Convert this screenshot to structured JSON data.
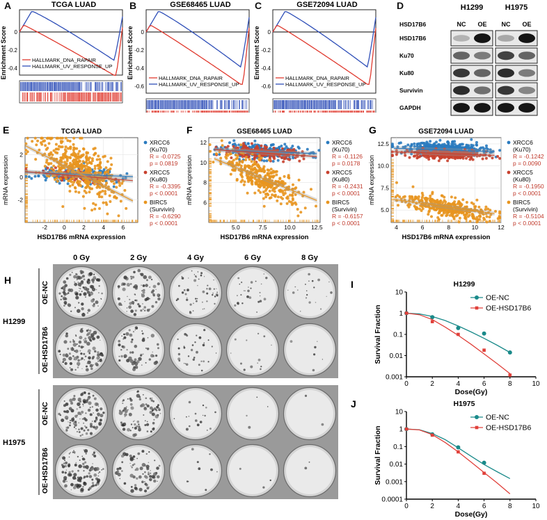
{
  "panels": {
    "A": {
      "letter": "A",
      "title": "TCGA LUAD",
      "ylabel": "Enrichment Score",
      "yticks": [
        "0",
        "-0.2",
        "-0.4"
      ],
      "legend": [
        "HALLMARK_DNA_RAPAIR",
        "HALLMARK_UV_RESPONSE_UP"
      ]
    },
    "B": {
      "letter": "B",
      "title": "GSE68465 LUAD",
      "ylabel": "Enrichment Score",
      "yticks": [
        "0",
        "-0.2",
        "-0.4",
        "-0.6"
      ],
      "legend": [
        "HALLMARK_DNA_RAPAIR",
        "HALLMARK_UV_RESPONSE_UP"
      ]
    },
    "C": {
      "letter": "C",
      "title": "GSE72094 LUAD",
      "ylabel": "Enrichment Score",
      "yticks": [
        "0",
        "-0.2",
        "-0.4",
        "-0.6"
      ],
      "legend": [
        "HALLMARK_DNA_RAPAIR",
        "HALLMARK_UV_RESPONSE_UP"
      ]
    },
    "D": {
      "letter": "D",
      "cell_lines": [
        "H1299",
        "H1975"
      ],
      "row_header": "HSD17B6",
      "cols": [
        "NC",
        "OE",
        "NC",
        "OE"
      ],
      "proteins": [
        "HSD17B6",
        "Ku70",
        "Ku80",
        "Survivin",
        "GAPDH"
      ]
    },
    "E": {
      "letter": "E",
      "title": "TCGA LUAD",
      "xlabel": "HSD17B6 mRNA expression",
      "ylabel": "mRNA expression",
      "xticks": [
        "-2",
        "0",
        "2",
        "4",
        "6"
      ],
      "yticks": [
        "2",
        "0",
        "-2"
      ],
      "stats": [
        {
          "gene": "XRCC6",
          "protein": "(Ku70)",
          "r": "R = -0.0725",
          "p": "p = 0.0819"
        },
        {
          "gene": "XRCC5",
          "protein": "(Ku80)",
          "r": "R = -0.3395",
          "p": "p < 0.0001"
        },
        {
          "gene": "BIRC5",
          "protein": "(Survivin)",
          "r": "R = -0.6290",
          "p": "p < 0.0001"
        }
      ]
    },
    "F": {
      "letter": "F",
      "title": "GSE68465 LUAD",
      "xlabel": "HSD17B6 mRNA expression",
      "ylabel": "mRNA expression",
      "xticks": [
        "5.0",
        "7.5",
        "10.0",
        "12.5"
      ],
      "yticks": [
        "12",
        "10",
        "8",
        "6"
      ],
      "stats": [
        {
          "gene": "XRCC6",
          "protein": "(Ku70)",
          "r": "R = -0.1126",
          "p": "p = 0.0178"
        },
        {
          "gene": "XRCC5",
          "protein": "(Ku80)",
          "r": "R = -0.2431",
          "p": "p < 0.0001"
        },
        {
          "gene": "BIRC5",
          "protein": "(Survivin)",
          "r": "R = -0.6157",
          "p": "p < 0.0001"
        }
      ]
    },
    "G": {
      "letter": "G",
      "title": "GSE72094 LUAD",
      "xlabel": "HSD17B6 mRNA expression",
      "ylabel": "mRNA expression",
      "xticks": [
        "4",
        "6",
        "8",
        "10",
        "12"
      ],
      "yticks": [
        "12.5",
        "10.0",
        "7.5",
        "5.0"
      ],
      "stats": [
        {
          "gene": "XRCC6",
          "protein": "(Ku70)",
          "r": "R = -0.1242",
          "p": "p = 0.0090"
        },
        {
          "gene": "XRCC5",
          "protein": "(Ku80)",
          "r": "R = -0.1950",
          "p": "p < 0.0001"
        },
        {
          "gene": "BIRC5",
          "protein": "(Survivin)",
          "r": "R = -0.5104",
          "p": "p < 0.0001"
        }
      ]
    },
    "H": {
      "letter": "H",
      "doses": [
        "0 Gy",
        "2 Gy",
        "4 Gy",
        "6 Gy",
        "8 Gy"
      ],
      "groups": [
        {
          "cell": "H1299",
          "rows": [
            "OE-NC",
            "OE-HSD17B6"
          ]
        },
        {
          "cell": "H1975",
          "rows": [
            "OE-NC",
            "OE-HSD17B6"
          ]
        }
      ]
    },
    "I": {
      "letter": "I"
    },
    "J": {
      "letter": "J"
    }
  },
  "chart_data": [
    {
      "id": "I",
      "type": "line",
      "title": "H1299",
      "xlabel": "Dose(Gy)",
      "ylabel": "Survival Fraction",
      "yscale": "log",
      "xlim": [
        0,
        10
      ],
      "ylim": [
        0.001,
        10
      ],
      "xticks": [
        "0",
        "2",
        "4",
        "6",
        "8",
        "10"
      ],
      "yticks": [
        "10",
        "1",
        "0.1",
        "0.01",
        "0.001"
      ],
      "series": [
        {
          "name": "OE-NC",
          "color": "#1a8a8a",
          "x": [
            0,
            2,
            4,
            6,
            8
          ],
          "y": [
            1,
            0.65,
            0.2,
            0.11,
            0.014
          ],
          "fit": [
            [
              0,
              1
            ],
            [
              1,
              0.93
            ],
            [
              2,
              0.7
            ],
            [
              3,
              0.45
            ],
            [
              4,
              0.25
            ],
            [
              5,
              0.13
            ],
            [
              6,
              0.065
            ],
            [
              7,
              0.031
            ],
            [
              8,
              0.014
            ]
          ]
        },
        {
          "name": "OE-HSD17B6",
          "color": "#e0403a",
          "x": [
            0,
            2,
            4,
            6,
            8
          ],
          "y": [
            1,
            0.4,
            0.1,
            0.018,
            0.0012
          ],
          "fit": [
            [
              0,
              1
            ],
            [
              1,
              0.85
            ],
            [
              2,
              0.5
            ],
            [
              3,
              0.22
            ],
            [
              4,
              0.09
            ],
            [
              5,
              0.034
            ],
            [
              6,
              0.012
            ],
            [
              7,
              0.0042
            ],
            [
              8,
              0.0014
            ]
          ]
        }
      ]
    },
    {
      "id": "J",
      "type": "line",
      "title": "H1975",
      "xlabel": "Dose(Gy)",
      "ylabel": "Survival Fraction",
      "yscale": "log",
      "xlim": [
        0,
        10
      ],
      "ylim": [
        0.0001,
        10
      ],
      "xticks": [
        "0",
        "2",
        "4",
        "6",
        "8",
        "10"
      ],
      "yticks": [
        "10",
        "1",
        "0.1",
        "0.01",
        "0.001",
        "0.0001"
      ],
      "series": [
        {
          "name": "OE-NC",
          "color": "#1a8a8a",
          "x": [
            0,
            2,
            4,
            6
          ],
          "y": [
            1,
            0.5,
            0.09,
            0.012
          ],
          "fit": [
            [
              0,
              1
            ],
            [
              1,
              0.92
            ],
            [
              2,
              0.55
            ],
            [
              3,
              0.25
            ],
            [
              4,
              0.085
            ],
            [
              5,
              0.028
            ],
            [
              6,
              0.0095
            ],
            [
              7,
              0.0037
            ],
            [
              8,
              0.0015
            ]
          ]
        },
        {
          "name": "OE-HSD17B6",
          "color": "#e0403a",
          "x": [
            0,
            2,
            4,
            6
          ],
          "y": [
            1,
            0.45,
            0.05,
            0.003
          ],
          "fit": [
            [
              0,
              1
            ],
            [
              1,
              0.9
            ],
            [
              2,
              0.48
            ],
            [
              3,
              0.17
            ],
            [
              4,
              0.05
            ],
            [
              5,
              0.013
            ],
            [
              6,
              0.0033
            ],
            [
              7,
              0.00085
            ],
            [
              8,
              0.0002
            ]
          ]
        }
      ]
    }
  ]
}
